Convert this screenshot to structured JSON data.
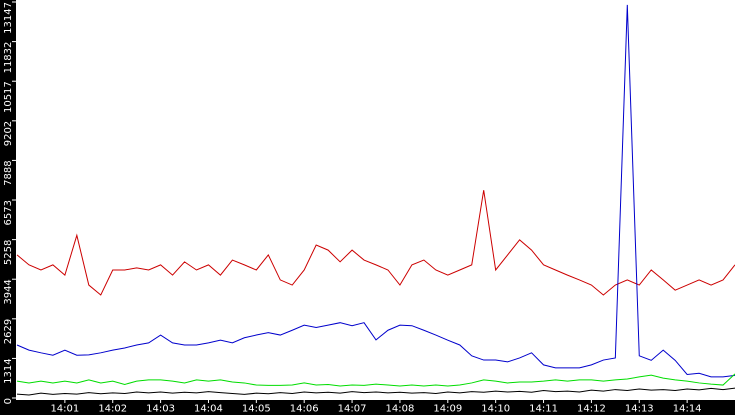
{
  "chart_data": {
    "type": "line",
    "x": [
      0,
      0.25,
      0.5,
      0.75,
      1,
      1.25,
      1.5,
      1.75,
      2,
      2.25,
      2.5,
      2.75,
      3,
      3.25,
      3.5,
      3.75,
      4,
      4.25,
      4.5,
      4.75,
      5,
      5.25,
      5.5,
      5.75,
      6,
      6.25,
      6.5,
      6.75,
      7,
      7.25,
      7.5,
      7.75,
      8,
      8.25,
      8.5,
      8.75,
      9,
      9.25,
      9.5,
      9.75,
      10,
      10.25,
      10.5,
      10.75,
      11,
      11.25,
      11.5,
      11.75,
      12,
      12.25,
      12.5,
      12.75,
      13,
      13.25,
      13.5,
      13.75,
      14,
      14.25,
      14.5,
      14.75,
      15
    ],
    "series": [
      {
        "color": "#cc0000",
        "values": [
          4750,
          4420,
          4250,
          4420,
          4080,
          5400,
          3750,
          3420,
          4250,
          4250,
          4320,
          4250,
          4420,
          4080,
          4520,
          4250,
          4420,
          4080,
          4580,
          4420,
          4250,
          4750,
          3920,
          3750,
          4250,
          5080,
          4910,
          4520,
          4910,
          4580,
          4420,
          4250,
          3750,
          4420,
          4580,
          4250,
          4080,
          4250,
          4420,
          6900,
          4250,
          4750,
          5250,
          4910,
          4420,
          4250,
          4080,
          3920,
          3750,
          3420,
          3750,
          3920,
          3750,
          4250,
          3920,
          3580,
          3750,
          3920,
          3750,
          3920,
          4420
        ]
      },
      {
        "color": "#0000cc",
        "values": [
          1760,
          1590,
          1500,
          1420,
          1590,
          1420,
          1430,
          1500,
          1590,
          1660,
          1760,
          1830,
          2090,
          1830,
          1760,
          1760,
          1830,
          1920,
          1830,
          2000,
          2090,
          2170,
          2090,
          2250,
          2420,
          2340,
          2420,
          2500,
          2400,
          2500,
          1930,
          2250,
          2420,
          2400,
          2250,
          2090,
          1920,
          1760,
          1400,
          1260,
          1260,
          1200,
          1330,
          1500,
          1100,
          1000,
          1000,
          1000,
          1100,
          1260,
          1330,
          13050,
          1400,
          1250,
          1590,
          1250,
          780,
          820,
          700,
          700,
          750
        ]
      },
      {
        "color": "#00dd00",
        "values": [
          560,
          500,
          560,
          500,
          560,
          500,
          600,
          500,
          560,
          450,
          560,
          600,
          600,
          560,
          500,
          600,
          560,
          600,
          530,
          500,
          430,
          420,
          420,
          430,
          500,
          430,
          450,
          400,
          430,
          420,
          460,
          430,
          400,
          430,
          400,
          430,
          400,
          430,
          500,
          600,
          560,
          500,
          530,
          530,
          560,
          600,
          560,
          600,
          600,
          560,
          600,
          630,
          700,
          760,
          660,
          600,
          560,
          500,
          460,
          430,
          800
        ]
      },
      {
        "color": "#000000",
        "values": [
          130,
          100,
          160,
          120,
          150,
          130,
          180,
          140,
          170,
          150,
          200,
          170,
          200,
          160,
          190,
          170,
          210,
          180,
          150,
          120,
          160,
          140,
          180,
          150,
          200,
          170,
          190,
          160,
          210,
          180,
          200,
          170,
          190,
          160,
          180,
          150,
          200,
          170,
          210,
          190,
          230,
          200,
          220,
          190,
          250,
          210,
          230,
          200,
          260,
          230,
          280,
          250,
          300,
          260,
          280,
          250,
          300,
          270,
          320,
          280,
          330
        ]
      }
    ],
    "xlim": [
      0,
      15
    ],
    "xticks": [
      {
        "value": 1,
        "label": "14:01"
      },
      {
        "value": 2,
        "label": "14:02"
      },
      {
        "value": 3,
        "label": "14:03"
      },
      {
        "value": 4,
        "label": "14:04"
      },
      {
        "value": 5,
        "label": "14:05"
      },
      {
        "value": 6,
        "label": "14:06"
      },
      {
        "value": 7,
        "label": "14:07"
      },
      {
        "value": 8,
        "label": "14:08"
      },
      {
        "value": 9,
        "label": "14:09"
      },
      {
        "value": 10,
        "label": "14:10"
      },
      {
        "value": 11,
        "label": "14:11"
      },
      {
        "value": 12,
        "label": "14:12"
      },
      {
        "value": 13,
        "label": "14:13"
      },
      {
        "value": 14,
        "label": "14:14"
      }
    ],
    "ylim": [
      0,
      13147
    ],
    "yticks": [
      0,
      1314,
      2629,
      3944,
      5258,
      6573,
      7888,
      9202,
      10517,
      11832,
      13147
    ]
  }
}
